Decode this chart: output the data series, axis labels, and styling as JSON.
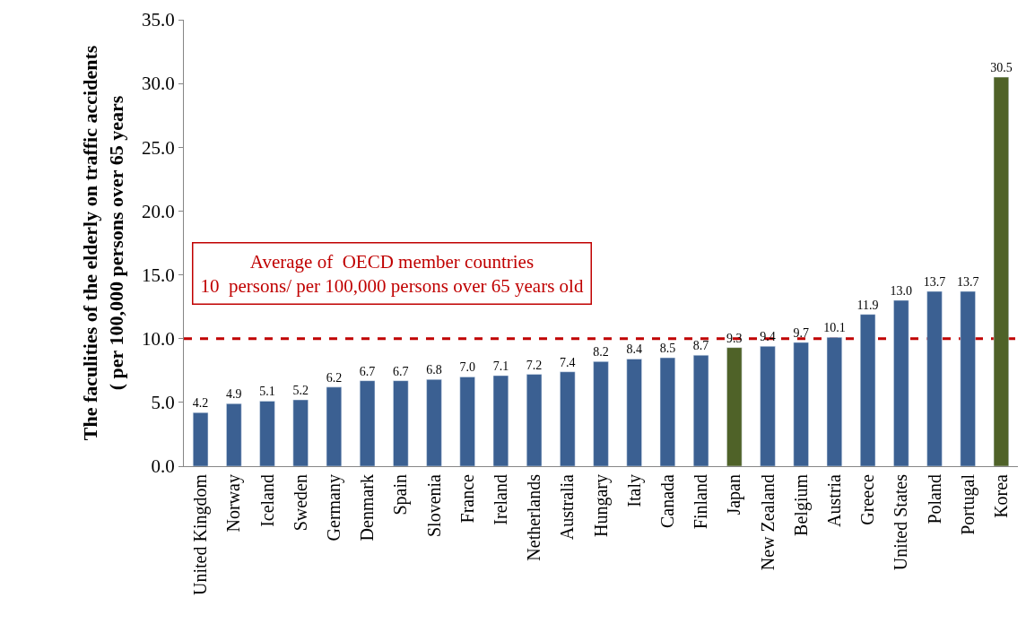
{
  "chart_data": {
    "type": "bar",
    "ylabel": "The faculities of the elderly on traffic accidents\n( per 100,000 persons over 65 years",
    "categories": [
      "United Kingdom",
      "Norway",
      "Iceland",
      "Sweden",
      "Germany",
      "Denmark",
      "Spain",
      "Slovenia",
      "France",
      "Ireland",
      "Netherlands",
      "Australia",
      "Hungary",
      "Italy",
      "Canada",
      "Finland",
      "Japan",
      "New Zealand",
      "Belgium",
      "Austria",
      "Greece",
      "United States",
      "Poland",
      "Portugal",
      "Korea"
    ],
    "values": [
      4.2,
      4.9,
      5.1,
      5.2,
      6.2,
      6.7,
      6.7,
      6.8,
      7.0,
      7.1,
      7.2,
      7.4,
      8.2,
      8.4,
      8.5,
      8.7,
      9.3,
      9.4,
      9.7,
      10.1,
      11.9,
      13.0,
      13.7,
      13.7,
      30.5
    ],
    "colors": [
      "#3b6092",
      "#3b6092",
      "#3b6092",
      "#3b6092",
      "#3b6092",
      "#3b6092",
      "#3b6092",
      "#3b6092",
      "#3b6092",
      "#3b6092",
      "#3b6092",
      "#3b6092",
      "#3b6092",
      "#3b6092",
      "#3b6092",
      "#3b6092",
      "#4f6228",
      "#3b6092",
      "#3b6092",
      "#3b6092",
      "#3b6092",
      "#3b6092",
      "#3b6092",
      "#3b6092",
      "#4f6228"
    ],
    "ylim": [
      0,
      35
    ],
    "yticks": [
      {
        "value": 0,
        "label": "0.0"
      },
      {
        "value": 5,
        "label": "5.0"
      },
      {
        "value": 10,
        "label": "10.0"
      },
      {
        "value": 15,
        "label": "15.0"
      },
      {
        "value": 20,
        "label": "20.0"
      },
      {
        "value": 25,
        "label": "25.0"
      },
      {
        "value": 30,
        "label": "30.0"
      },
      {
        "value": 35,
        "label": "35.0"
      }
    ],
    "value_labels": [
      "4.2",
      "4.9",
      "5.1",
      "5.2",
      "6.2",
      "6.7",
      "6.7",
      "6.8",
      "7.0",
      "7.1",
      "7.2",
      "7.4",
      "8.2",
      "8.4",
      "8.5",
      "8.7",
      "9.3",
      "9.4",
      "9.7",
      "10.1",
      "11.9",
      "13.0",
      "13.7",
      "13.7",
      "30.5"
    ],
    "ref_lines": [
      {
        "axis": "y",
        "value": 10,
        "label": "Average of  OECD member countries\n10  persons/ per 100,000 persons over 65 years old",
        "color": "#c00000",
        "line_style": "dashed"
      }
    ]
  }
}
